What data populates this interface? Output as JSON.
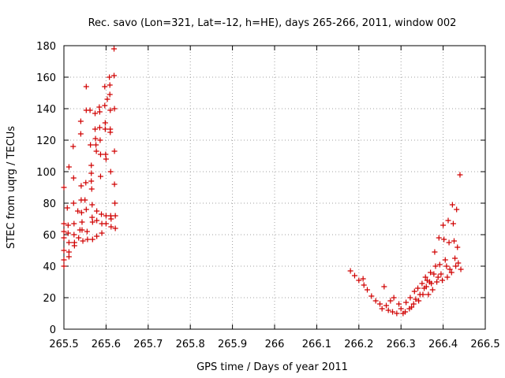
{
  "chart_data": {
    "type": "scatter",
    "title": "Rec. savo (Lon=321, Lat=-12, h=HE), days 265-266, 2011, window 002",
    "xlabel": "GPS time / Days of year 2011",
    "ylabel": "STEC from uqrg / TECUs",
    "xlim": [
      265.5,
      266.5
    ],
    "ylim": [
      0,
      180
    ],
    "xticks": [
      265.5,
      265.6,
      265.7,
      265.8,
      265.9,
      266,
      266.1,
      266.2,
      266.3,
      266.4,
      266.5
    ],
    "xtick_labels": [
      "265.5",
      "265.6",
      "265.7",
      "265.8",
      "265.9",
      "266",
      "266.1",
      "266.2",
      "266.3",
      "266.4",
      "266.5"
    ],
    "yticks": [
      0,
      20,
      40,
      60,
      80,
      100,
      120,
      140,
      160,
      180
    ],
    "ytick_labels": [
      "0",
      "20",
      "40",
      "60",
      "80",
      "100",
      "120",
      "140",
      "160",
      "180"
    ],
    "grid": true,
    "marker": "+",
    "color": "#d00000",
    "series": [
      {
        "points": [
          [
            265.5,
            90
          ],
          [
            265.5,
            67
          ],
          [
            265.5,
            62
          ],
          [
            265.5,
            58
          ],
          [
            265.5,
            50
          ],
          [
            265.5,
            44
          ],
          [
            265.5,
            40
          ],
          [
            265.508,
            77
          ],
          [
            265.512,
            103
          ],
          [
            265.51,
            66
          ],
          [
            265.51,
            61
          ],
          [
            265.512,
            55
          ],
          [
            265.512,
            49
          ],
          [
            265.512,
            46
          ],
          [
            265.522,
            116
          ],
          [
            265.523,
            96
          ],
          [
            265.523,
            80
          ],
          [
            265.524,
            67
          ],
          [
            265.524,
            60
          ],
          [
            265.525,
            55
          ],
          [
            265.525,
            53
          ],
          [
            265.533,
            75
          ],
          [
            265.535,
            58
          ],
          [
            265.538,
            63
          ],
          [
            265.54,
            132
          ],
          [
            265.54,
            124
          ],
          [
            265.541,
            91
          ],
          [
            265.541,
            82
          ],
          [
            265.542,
            74
          ],
          [
            265.543,
            68
          ],
          [
            265.543,
            63
          ],
          [
            265.545,
            56
          ],
          [
            265.55,
            82
          ],
          [
            265.553,
            154
          ],
          [
            265.553,
            139
          ],
          [
            265.552,
            93
          ],
          [
            265.553,
            76
          ],
          [
            265.555,
            62
          ],
          [
            265.556,
            57
          ],
          [
            265.562,
            139
          ],
          [
            265.563,
            117
          ],
          [
            265.565,
            104
          ],
          [
            265.565,
            99
          ],
          [
            265.565,
            94
          ],
          [
            265.566,
            89
          ],
          [
            265.567,
            79
          ],
          [
            265.567,
            71
          ],
          [
            265.568,
            68
          ],
          [
            265.568,
            57
          ],
          [
            265.574,
            137
          ],
          [
            265.574,
            127
          ],
          [
            265.575,
            121
          ],
          [
            265.576,
            117
          ],
          [
            265.577,
            113
          ],
          [
            265.578,
            75
          ],
          [
            265.578,
            69
          ],
          [
            265.578,
            59
          ],
          [
            265.584,
            141
          ],
          [
            265.585,
            138
          ],
          [
            265.585,
            128
          ],
          [
            265.586,
            120
          ],
          [
            265.587,
            111
          ],
          [
            265.587,
            97
          ],
          [
            265.589,
            73
          ],
          [
            265.59,
            67
          ],
          [
            265.59,
            61
          ],
          [
            265.597,
            154
          ],
          [
            265.597,
            142
          ],
          [
            265.598,
            131
          ],
          [
            265.598,
            127
          ],
          [
            265.599,
            111
          ],
          [
            265.6,
            108
          ],
          [
            265.6,
            72
          ],
          [
            265.6,
            67
          ],
          [
            265.603,
            146
          ],
          [
            265.608,
            160
          ],
          [
            265.609,
            155
          ],
          [
            265.609,
            149
          ],
          [
            265.61,
            139
          ],
          [
            265.61,
            127
          ],
          [
            265.61,
            125
          ],
          [
            265.611,
            100
          ],
          [
            265.611,
            72
          ],
          [
            265.612,
            70
          ],
          [
            265.612,
            65
          ],
          [
            265.619,
            178
          ],
          [
            265.619,
            161
          ],
          [
            265.62,
            140
          ],
          [
            265.62,
            113
          ],
          [
            265.62,
            92
          ],
          [
            265.621,
            80
          ],
          [
            265.622,
            72
          ],
          [
            265.622,
            64
          ],
          [
            266.18,
            37
          ],
          [
            266.19,
            34
          ],
          [
            266.2,
            31
          ],
          [
            266.21,
            32
          ],
          [
            266.212,
            28
          ],
          [
            266.22,
            25
          ],
          [
            266.23,
            21
          ],
          [
            266.24,
            18
          ],
          [
            266.25,
            16
          ],
          [
            266.255,
            13
          ],
          [
            266.26,
            27
          ],
          [
            266.265,
            15
          ],
          [
            266.27,
            12
          ],
          [
            266.275,
            18
          ],
          [
            266.28,
            11
          ],
          [
            266.283,
            20
          ],
          [
            266.29,
            10
          ],
          [
            266.295,
            16
          ],
          [
            266.3,
            13
          ],
          [
            266.305,
            10
          ],
          [
            266.31,
            11
          ],
          [
            266.312,
            17
          ],
          [
            266.32,
            13
          ],
          [
            266.322,
            20
          ],
          [
            266.325,
            14
          ],
          [
            266.33,
            16
          ],
          [
            266.332,
            24
          ],
          [
            266.335,
            19
          ],
          [
            266.34,
            26
          ],
          [
            266.342,
            18
          ],
          [
            266.345,
            22
          ],
          [
            266.35,
            29
          ],
          [
            266.352,
            22
          ],
          [
            266.355,
            26
          ],
          [
            266.358,
            33
          ],
          [
            266.36,
            27
          ],
          [
            266.362,
            31
          ],
          [
            266.365,
            22
          ],
          [
            266.368,
            30
          ],
          [
            266.37,
            36
          ],
          [
            266.372,
            29
          ],
          [
            266.375,
            25
          ],
          [
            266.378,
            35
          ],
          [
            266.38,
            49
          ],
          [
            266.382,
            40
          ],
          [
            266.385,
            30
          ],
          [
            266.388,
            33
          ],
          [
            266.39,
            58
          ],
          [
            266.392,
            41
          ],
          [
            266.395,
            35
          ],
          [
            266.398,
            31
          ],
          [
            266.4,
            66
          ],
          [
            266.402,
            57
          ],
          [
            266.405,
            44
          ],
          [
            266.408,
            40
          ],
          [
            266.41,
            33
          ],
          [
            266.412,
            69
          ],
          [
            266.414,
            55
          ],
          [
            266.416,
            38
          ],
          [
            266.42,
            36
          ],
          [
            266.422,
            79
          ],
          [
            266.424,
            67
          ],
          [
            266.426,
            56
          ],
          [
            266.428,
            45
          ],
          [
            266.43,
            40
          ],
          [
            266.432,
            76
          ],
          [
            266.434,
            52
          ],
          [
            266.436,
            42
          ],
          [
            266.44,
            98
          ],
          [
            266.442,
            38
          ]
        ]
      }
    ]
  }
}
